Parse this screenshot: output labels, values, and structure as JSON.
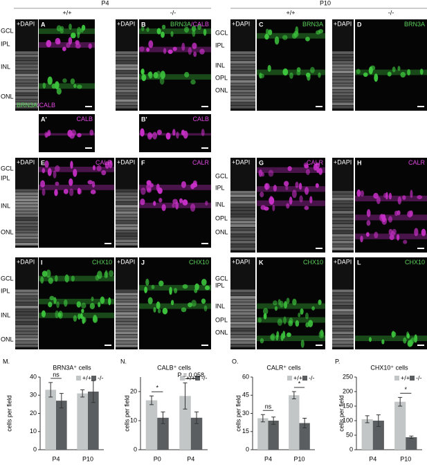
{
  "figure": {
    "headers": [
      "P4",
      "P10"
    ],
    "genotypes": [
      "+/+",
      "-/-",
      "+/+",
      "-/-"
    ],
    "dapi_label": "+DAPI",
    "layer_labels": [
      [
        "GCL",
        "IPL",
        "INL",
        "ONL"
      ],
      [
        "GCL",
        "IPL",
        "INL",
        "OPL",
        "ONL"
      ],
      [
        "GCL",
        "IPL",
        "INL",
        "ONL"
      ],
      [
        "GCL",
        "IPL",
        "INL",
        "OPL",
        "ONL"
      ],
      [
        "GCL",
        "IPL",
        "INL",
        "ONL"
      ],
      [
        "GCL",
        "IPL",
        "INL",
        "OPL",
        "ONL"
      ]
    ],
    "panels": [
      {
        "letter": "A",
        "marker": [
          {
            "text": "BRN3A",
            "color": "#5bd35b"
          },
          {
            "text": "/CALB",
            "color": "#e048e0"
          }
        ]
      },
      {
        "letter": "B",
        "marker": [
          {
            "text": "BRN3A",
            "color": "#5bd35b"
          },
          {
            "text": "/CALB",
            "color": "#e048e0"
          }
        ]
      },
      {
        "letter": "A'",
        "marker": [
          {
            "text": "CALB",
            "color": "#e048e0"
          }
        ]
      },
      {
        "letter": "B'",
        "marker": [
          {
            "text": "CALB",
            "color": "#e048e0"
          }
        ]
      },
      {
        "letter": "C",
        "marker": [
          {
            "text": "BRN3A",
            "color": "#5bd35b"
          }
        ]
      },
      {
        "letter": "D",
        "marker": [
          {
            "text": "BRN3A",
            "color": "#5bd35b"
          }
        ]
      },
      {
        "letter": "E",
        "marker": [
          {
            "text": "CALR",
            "color": "#e048e0"
          }
        ]
      },
      {
        "letter": "F",
        "marker": [
          {
            "text": "CALR",
            "color": "#e048e0"
          }
        ]
      },
      {
        "letter": "G",
        "marker": [
          {
            "text": "CALR",
            "color": "#e048e0"
          }
        ]
      },
      {
        "letter": "H",
        "marker": [
          {
            "text": "CALR",
            "color": "#e048e0"
          }
        ]
      },
      {
        "letter": "I",
        "marker": [
          {
            "text": "CHX10",
            "color": "#5bd35b"
          }
        ]
      },
      {
        "letter": "J",
        "marker": [
          {
            "text": "CHX10",
            "color": "#5bd35b"
          }
        ]
      },
      {
        "letter": "K",
        "marker": [
          {
            "text": "CHX10",
            "color": "#5bd35b"
          }
        ]
      },
      {
        "letter": "L",
        "marker": [
          {
            "text": "CHX10",
            "color": "#5bd35b"
          }
        ]
      }
    ]
  },
  "chart_data": [
    {
      "type": "bar",
      "panel": "M.",
      "title": "BRN3A⁺ cells",
      "y_label": "cells per field",
      "categories": [
        "P4",
        "P10"
      ],
      "ylim": [
        0,
        40
      ],
      "yticks": [
        0,
        10,
        20,
        30,
        40
      ],
      "annotations": [
        "ns",
        null
      ],
      "series": [
        {
          "name": "+/+",
          "color": "#c2c6c6",
          "values": [
            33,
            31
          ],
          "errors": [
            4,
            2
          ]
        },
        {
          "name": "-/-",
          "color": "#5b5e60",
          "values": [
            27,
            32
          ],
          "errors": [
            4,
            6
          ]
        }
      ]
    },
    {
      "type": "bar",
      "panel": "N.",
      "title": "CALB⁺ cells",
      "y_label": "cells per field",
      "categories": [
        "P0",
        "P4"
      ],
      "ylim": [
        0,
        25
      ],
      "yticks": [
        0,
        10,
        20
      ],
      "annotations": [
        "*",
        "P = 0.058"
      ],
      "series": [
        {
          "name": "+/+",
          "color": "#c2c6c6",
          "values": [
            17,
            18.5
          ],
          "errors": [
            1.5,
            4.5
          ]
        },
        {
          "name": "-/-",
          "color": "#5b5e60",
          "values": [
            11,
            11
          ],
          "errors": [
            2,
            2
          ]
        }
      ]
    },
    {
      "type": "bar",
      "panel": "O.",
      "title": "CALR⁺ cells",
      "y_label": "cells per field",
      "categories": [
        "P4",
        "P10"
      ],
      "ylim": [
        0,
        60
      ],
      "yticks": [
        0,
        15,
        30,
        45,
        60
      ],
      "annotations": [
        "ns",
        "*"
      ],
      "series": [
        {
          "name": "+/+",
          "color": "#c2c6c6",
          "values": [
            26,
            45
          ],
          "errors": [
            3,
            3
          ]
        },
        {
          "name": "-/-",
          "color": "#5b5e60",
          "values": [
            24,
            22
          ],
          "errors": [
            3,
            4
          ]
        }
      ]
    },
    {
      "type": "bar",
      "panel": "P.",
      "title": "CHX10⁺ cells",
      "y_label": "cells per field",
      "categories": [
        "P4",
        "P10"
      ],
      "ylim": [
        0,
        250
      ],
      "yticks": [
        0,
        50,
        100,
        150,
        200,
        250
      ],
      "annotations": [
        null,
        "*"
      ],
      "series": [
        {
          "name": "+/+",
          "color": "#c2c6c6",
          "values": [
            105,
            165
          ],
          "errors": [
            12,
            15
          ]
        },
        {
          "name": "-/-",
          "color": "#5b5e60",
          "values": [
            100,
            43
          ],
          "errors": [
            20,
            4
          ]
        }
      ]
    }
  ]
}
